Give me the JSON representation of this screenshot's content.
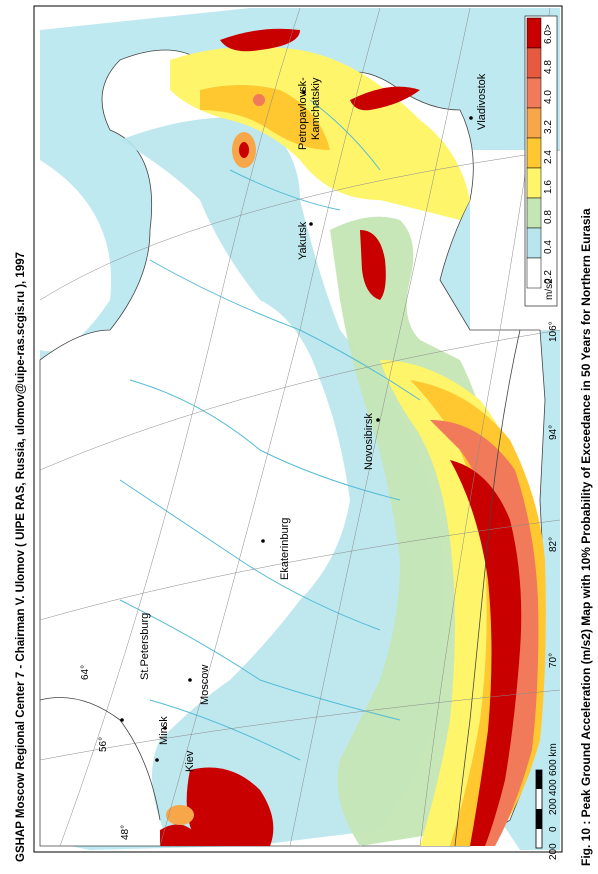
{
  "header": {
    "credit": "GSHAP Moscow Regional Center 7 - Chairman V. Ulomov  ( UIPE RAS, Russia, ulomov@uipe-ras.scgis.ru ), 1997",
    "caption": "Fig. 10 : Peak Ground Acceleration (m/s2) Map with 10% Probability of Exceedance in 50 Years for Northern Eurasia"
  },
  "legend": {
    "unit": "m/s2",
    "entries": [
      {
        "label": "0.2",
        "color": "#ffffff"
      },
      {
        "label": "0.4",
        "color": "#b8e6ec"
      },
      {
        "label": "0.8",
        "color": "#c4e6b4"
      },
      {
        "label": "1.6",
        "color": "#fff56a"
      },
      {
        "label": "2.4",
        "color": "#ffc830"
      },
      {
        "label": "3.2",
        "color": "#f8a64a"
      },
      {
        "label": "4.0",
        "color": "#f07a5a"
      },
      {
        "label": "4.8",
        "color": "#e65a40"
      },
      {
        "label": "6.0>",
        "color": "#c80000"
      }
    ]
  },
  "scale_bar": {
    "labels": [
      "200",
      "0",
      "200",
      "400",
      "600 km"
    ]
  },
  "coords": {
    "lat": [
      "48°",
      "56°",
      "64°"
    ],
    "lon": [
      "70°",
      "82°",
      "94°",
      "106°"
    ]
  },
  "cities": [
    {
      "name": "Petropavlovsk-",
      "sub": "Kamchatskiy"
    },
    {
      "name": "Vladivostok"
    },
    {
      "name": "Yakutsk"
    },
    {
      "name": "Novosibirsk"
    },
    {
      "name": "Ekaterinburg"
    },
    {
      "name": "St.Petersburg"
    },
    {
      "name": "Minsk"
    },
    {
      "name": "Kiev"
    },
    {
      "name": "Moscow"
    }
  ],
  "colors": {
    "sea": "#bfe9f0",
    "land": "#ffffff",
    "river": "#55bcd6",
    "grid": "#8a8a8a",
    "border": "#444444"
  }
}
